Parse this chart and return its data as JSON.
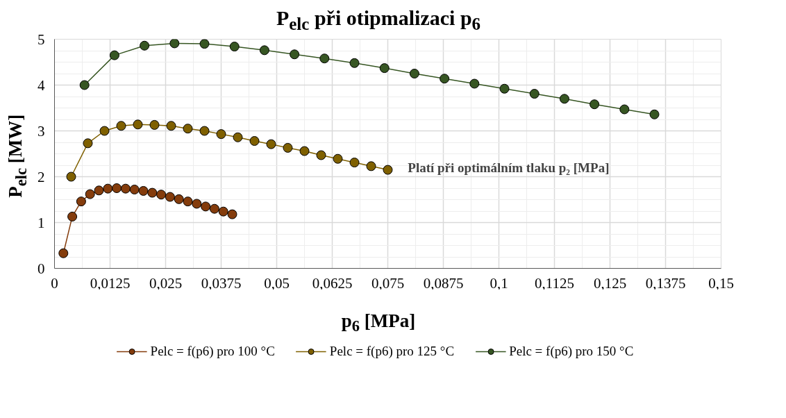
{
  "chart_data": {
    "type": "line",
    "title": "P$_{elc}$ při otipmalizaci p$_{6}$",
    "xlabel": "p$_{6}$ [MPa]",
    "ylabel": "P$_{elc}$ [MW]",
    "annotations": [
      "Platí při optimálním tlaku p₂ [MPa]"
    ],
    "series": [
      {
        "name": "Pelc = f(p6) pro 100 °C",
        "color": "#843c0c",
        "x": [
          0.002,
          0.004,
          0.006,
          0.008,
          0.01,
          0.012,
          0.014,
          0.016,
          0.018,
          0.02,
          0.022,
          0.024,
          0.026,
          0.028,
          0.03,
          0.032,
          0.034,
          0.036,
          0.038,
          0.04
        ],
        "values": [
          0.33,
          1.13,
          1.46,
          1.62,
          1.7,
          1.74,
          1.75,
          1.74,
          1.72,
          1.69,
          1.65,
          1.61,
          1.56,
          1.51,
          1.46,
          1.41,
          1.35,
          1.3,
          1.24,
          1.18
        ]
      },
      {
        "name": "Pelc = f(p6) pro 125 °C",
        "color": "#7f6000",
        "x": [
          0.00375,
          0.0075,
          0.01125,
          0.015,
          0.01875,
          0.0225,
          0.02625,
          0.03,
          0.03375,
          0.0375,
          0.04125,
          0.045,
          0.04875,
          0.0525,
          0.05625,
          0.06,
          0.06375,
          0.0675,
          0.07125,
          0.075
        ],
        "values": [
          2.0,
          2.73,
          3.0,
          3.11,
          3.14,
          3.13,
          3.11,
          3.05,
          3.0,
          2.93,
          2.86,
          2.78,
          2.71,
          2.63,
          2.56,
          2.47,
          2.39,
          2.31,
          2.23,
          2.15
        ]
      },
      {
        "name": "Pelc = f(p6) pro 150 °C",
        "color": "#375623",
        "x": [
          0.00675,
          0.0135,
          0.02025,
          0.027,
          0.03375,
          0.0405,
          0.04725,
          0.054,
          0.06075,
          0.0675,
          0.07425,
          0.081,
          0.08775,
          0.0945,
          0.10125,
          0.108,
          0.11475,
          0.1215,
          0.12825,
          0.135
        ],
        "values": [
          4.0,
          4.65,
          4.86,
          4.91,
          4.9,
          4.84,
          4.76,
          4.67,
          4.58,
          4.48,
          4.37,
          4.25,
          4.14,
          4.03,
          3.92,
          3.81,
          3.7,
          3.58,
          3.47,
          3.36
        ]
      }
    ],
    "xlim": [
      0,
      0.15
    ],
    "xticks": [
      0,
      {
        "value": 0.0125,
        "label": "0,0125"
      },
      {
        "value": 0.025,
        "label": "0,025"
      },
      {
        "value": 0.0375,
        "label": "0,0375"
      },
      {
        "value": 0.05,
        "label": "0,05"
      },
      {
        "value": 0.0625,
        "label": "0,0625"
      },
      {
        "value": 0.075,
        "label": "0,075"
      },
      {
        "value": 0.0875,
        "label": "0,0875"
      },
      {
        "value": 0.1,
        "label": "0,1"
      },
      {
        "value": 0.1125,
        "label": "0,1125"
      },
      {
        "value": 0.125,
        "label": "0,125"
      },
      {
        "value": 0.1375,
        "label": "0,1375"
      },
      {
        "value": 0.15,
        "label": "0,15"
      }
    ],
    "ylim": [
      0,
      5
    ],
    "yticks": [
      0,
      1,
      2,
      3,
      4,
      5
    ],
    "grid": true,
    "legend": "bottom",
    "marker": "circle",
    "line_style": "solid"
  }
}
